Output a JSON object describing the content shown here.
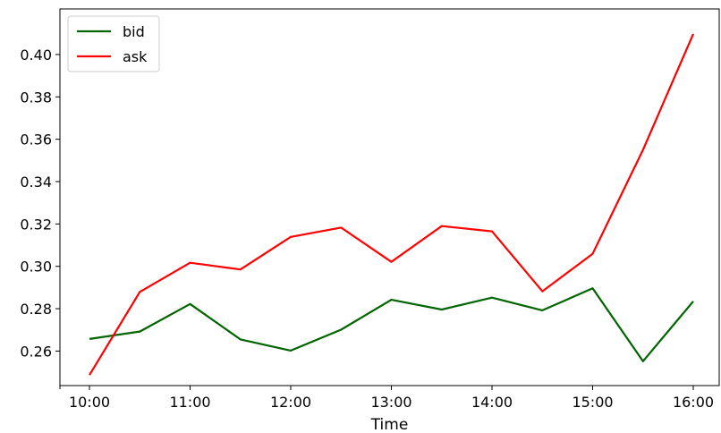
{
  "chart_data": {
    "type": "line",
    "title": "",
    "xlabel": "Time",
    "ylabel": "",
    "x": [
      "10:00",
      "10:30",
      "11:00",
      "11:30",
      "12:00",
      "12:30",
      "13:00",
      "13:30",
      "14:00",
      "14:30",
      "15:00",
      "15:30",
      "16:00"
    ],
    "x_ticks": [
      "10:00",
      "11:00",
      "12:00",
      "13:00",
      "14:00",
      "15:00",
      "16:00"
    ],
    "y_ticks": [
      "0.26",
      "0.28",
      "0.30",
      "0.32",
      "0.34",
      "0.36",
      "0.38",
      "0.40"
    ],
    "ylim": [
      0.2437,
      0.4215
    ],
    "grid": false,
    "legend_position": "top-left",
    "series": [
      {
        "name": "bid",
        "color": "#006400",
        "values": [
          0.2657,
          0.2692,
          0.2822,
          0.2655,
          0.2602,
          0.2701,
          0.2842,
          0.2796,
          0.2852,
          0.2792,
          0.2896,
          0.2552,
          0.2835
        ]
      },
      {
        "name": "ask",
        "color": "#ff0000",
        "values": [
          0.2487,
          0.2879,
          0.3017,
          0.2985,
          0.3139,
          0.3183,
          0.3021,
          0.319,
          0.3165,
          0.2882,
          0.3059,
          0.355,
          0.4097
        ]
      }
    ]
  }
}
